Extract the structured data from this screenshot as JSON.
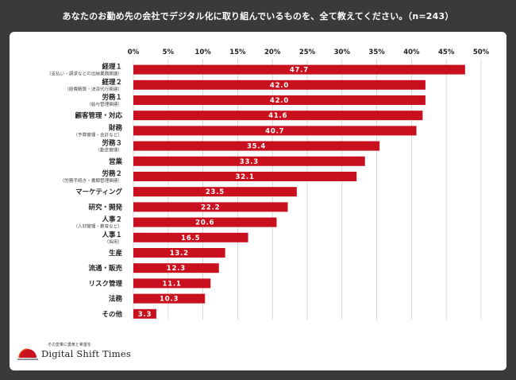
{
  "title": "あなたのお勤め先の会社でデジタル化に取り組んでいるものを、全て教えてください。（n=243）",
  "brand": {
    "tagline": "その変革に勇気と希望を",
    "name": "Digital Shift Times"
  },
  "colors": {
    "bar": "#c8101f",
    "grid": "#c8c8c8",
    "background": "#3a3a3a",
    "card": "#ffffff"
  },
  "chart_data": {
    "type": "bar",
    "orientation": "horizontal",
    "unit": "%",
    "xlim": [
      0,
      50
    ],
    "ticks": [
      "0%",
      "5%",
      "10%",
      "15%",
      "20%",
      "25%",
      "30%",
      "35%",
      "40%",
      "45%",
      "50%"
    ],
    "categories": [
      {
        "label": "経理１",
        "sub": "（支払い・請求などの出納業務関連）",
        "value": 47.7,
        "display": "47.7"
      },
      {
        "label": "経理２",
        "sub": "（経費精算・決済代行関連）",
        "value": 42.0,
        "display": "42.0"
      },
      {
        "label": "労務１",
        "sub": "（給与管理関連）",
        "value": 42.0,
        "display": "42.0"
      },
      {
        "label": "顧客管理・対応",
        "sub": "",
        "value": 41.6,
        "display": "41.6"
      },
      {
        "label": "財務",
        "sub": "（予算管理・会計など）",
        "value": 40.7,
        "display": "40.7"
      },
      {
        "label": "労務３",
        "sub": "（勤怠管理）",
        "value": 35.4,
        "display": "35.4"
      },
      {
        "label": "営業",
        "sub": "",
        "value": 33.3,
        "display": "33.3"
      },
      {
        "label": "労務２",
        "sub": "（労務手続き・書類管理関連）",
        "value": 32.1,
        "display": "32.1"
      },
      {
        "label": "マーケティング",
        "sub": "",
        "value": 23.5,
        "display": "23.5"
      },
      {
        "label": "研究・開発",
        "sub": "",
        "value": 22.2,
        "display": "22.2"
      },
      {
        "label": "人事２",
        "sub": "（人材管理・教育など）",
        "value": 20.6,
        "display": "20.6"
      },
      {
        "label": "人事１",
        "sub": "（採用）",
        "value": 16.5,
        "display": "16.5"
      },
      {
        "label": "生産",
        "sub": "",
        "value": 13.2,
        "display": "13.2"
      },
      {
        "label": "流通・販売",
        "sub": "",
        "value": 12.3,
        "display": "12.3"
      },
      {
        "label": "リスク管理",
        "sub": "",
        "value": 11.1,
        "display": "11.1"
      },
      {
        "label": "法務",
        "sub": "",
        "value": 10.3,
        "display": "10.3"
      },
      {
        "label": "その他",
        "sub": "",
        "value": 3.3,
        "display": "3.3"
      }
    ]
  }
}
